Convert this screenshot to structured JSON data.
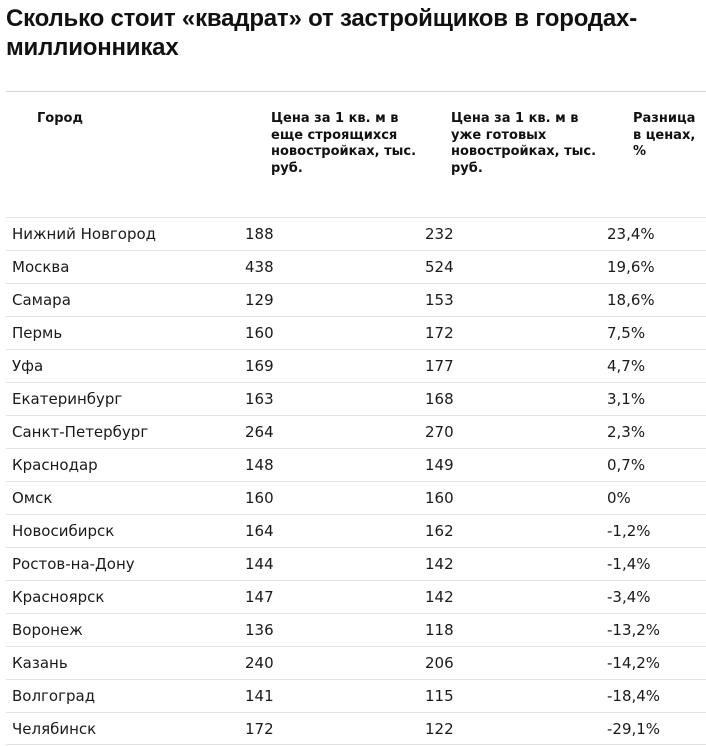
{
  "title": "Сколько стоит «квадрат» от застройщиков в городах-миллионниках",
  "chart_data": {
    "type": "table",
    "columns": [
      "Город",
      "Цена за 1 кв. м в еще строящихся новостройках, тыс. руб.",
      "Цена за 1 кв. м в уже готовых новостройках, тыс. руб.",
      "Разница в ценах, %"
    ],
    "rows": [
      {
        "city": "Нижний Новгород",
        "new": "188",
        "ready": "232",
        "diff": "23,4%"
      },
      {
        "city": "Москва",
        "new": "438",
        "ready": "524",
        "diff": "19,6%"
      },
      {
        "city": "Самара",
        "new": "129",
        "ready": "153",
        "diff": "18,6%"
      },
      {
        "city": "Пермь",
        "new": "160",
        "ready": "172",
        "diff": "7,5%"
      },
      {
        "city": "Уфа",
        "new": "169",
        "ready": "177",
        "diff": "4,7%"
      },
      {
        "city": "Екатеринбург",
        "new": "163",
        "ready": "168",
        "diff": "3,1%"
      },
      {
        "city": "Санкт-Петербург",
        "new": "264",
        "ready": "270",
        "diff": "2,3%"
      },
      {
        "city": "Краснодар",
        "new": "148",
        "ready": "149",
        "diff": "0,7%"
      },
      {
        "city": "Омск",
        "new": "160",
        "ready": "160",
        "diff": "0%"
      },
      {
        "city": "Новосибирск",
        "new": "164",
        "ready": "162",
        "diff": "-1,2%"
      },
      {
        "city": "Ростов-на-Дону",
        "new": "144",
        "ready": "142",
        "diff": "-1,4%"
      },
      {
        "city": "Красноярск",
        "new": "147",
        "ready": "142",
        "diff": "-3,4%"
      },
      {
        "city": "Воронеж",
        "new": "136",
        "ready": "118",
        "diff": "-13,2%"
      },
      {
        "city": "Казань",
        "new": "240",
        "ready": "206",
        "diff": "-14,2%"
      },
      {
        "city": "Волгоград",
        "new": "141",
        "ready": "115",
        "diff": "-18,4%"
      },
      {
        "city": "Челябинск",
        "new": "172",
        "ready": "122",
        "diff": "-29,1%"
      }
    ]
  }
}
